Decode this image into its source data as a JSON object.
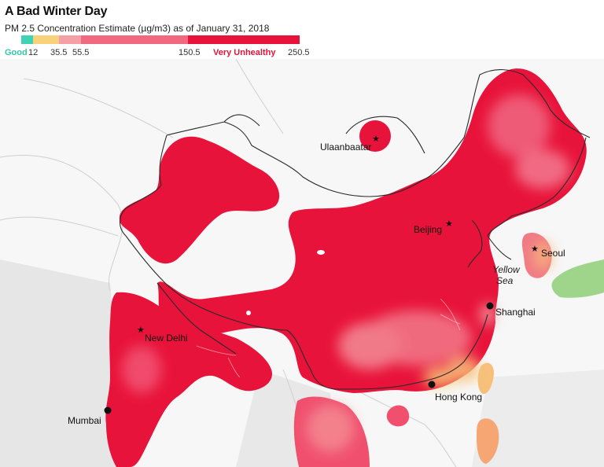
{
  "title": "A Bad Winter Day",
  "subtitle": "PM 2.5 Concentration Estimate (µg/m3) as of January 31, 2018",
  "legend": {
    "good_label": "Good",
    "very_unhealthy_label": "Very Unhealthy",
    "ticks": [
      "12",
      "35.5",
      "55.5",
      "150.5",
      "250.5"
    ],
    "colors": [
      "#3fd3b3",
      "#f7d27a",
      "#f4a0a6",
      "#f06882",
      "#e8133a"
    ]
  },
  "cities": {
    "ulaanbaatar": "Ulaanbaatar",
    "beijing": "Beijing",
    "seoul": "Seoul",
    "shanghai": "Shanghai",
    "new_delhi": "New Delhi",
    "hong_kong": "Hong Kong",
    "mumbai": "Mumbai"
  },
  "seas": {
    "yellow_sea_line1": "Yellow",
    "yellow_sea_line2": "Sea"
  },
  "colors": {
    "land": "#eaeaea",
    "border": "#2a2a2a",
    "very_unhealthy": "#e8133a",
    "unhealthy": "#f0506e",
    "moderate": "#f7d27a",
    "good": "#8fd37a"
  },
  "icons": {
    "capital": "star-icon",
    "city": "dot-icon"
  }
}
